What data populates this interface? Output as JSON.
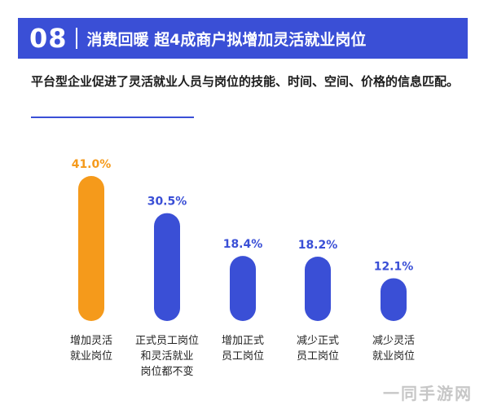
{
  "header": {
    "number": "08",
    "title": "消费回暖 超4成商户拟增加灵活就业岗位"
  },
  "subtitle": "平台型企业促进了灵活就业人员与岗位的技能、时间、空间、价格的信息匹配。",
  "watermark": "一同手游网",
  "colors": {
    "brand": "#3a4fd6",
    "highlight": "#f59a1b",
    "bar": "#3a4fd6"
  },
  "chart_data": {
    "type": "bar",
    "categories": [
      [
        "增加灵活",
        "就业岗位"
      ],
      [
        "正式员工岗位",
        "和灵活就业",
        "岗位都不变"
      ],
      [
        "增加正式",
        "员工岗位"
      ],
      [
        "减少正式",
        "员工岗位"
      ],
      [
        "减少灵活",
        "就业岗位"
      ]
    ],
    "values": [
      41.0,
      30.5,
      18.4,
      18.2,
      12.1
    ],
    "value_labels": [
      "41.0%",
      "30.5%",
      "18.4%",
      "18.2%",
      "12.1%"
    ],
    "highlight_index": 0,
    "unit": "%",
    "ylim": [
      0,
      41
    ],
    "grid": false,
    "legend": "none"
  }
}
